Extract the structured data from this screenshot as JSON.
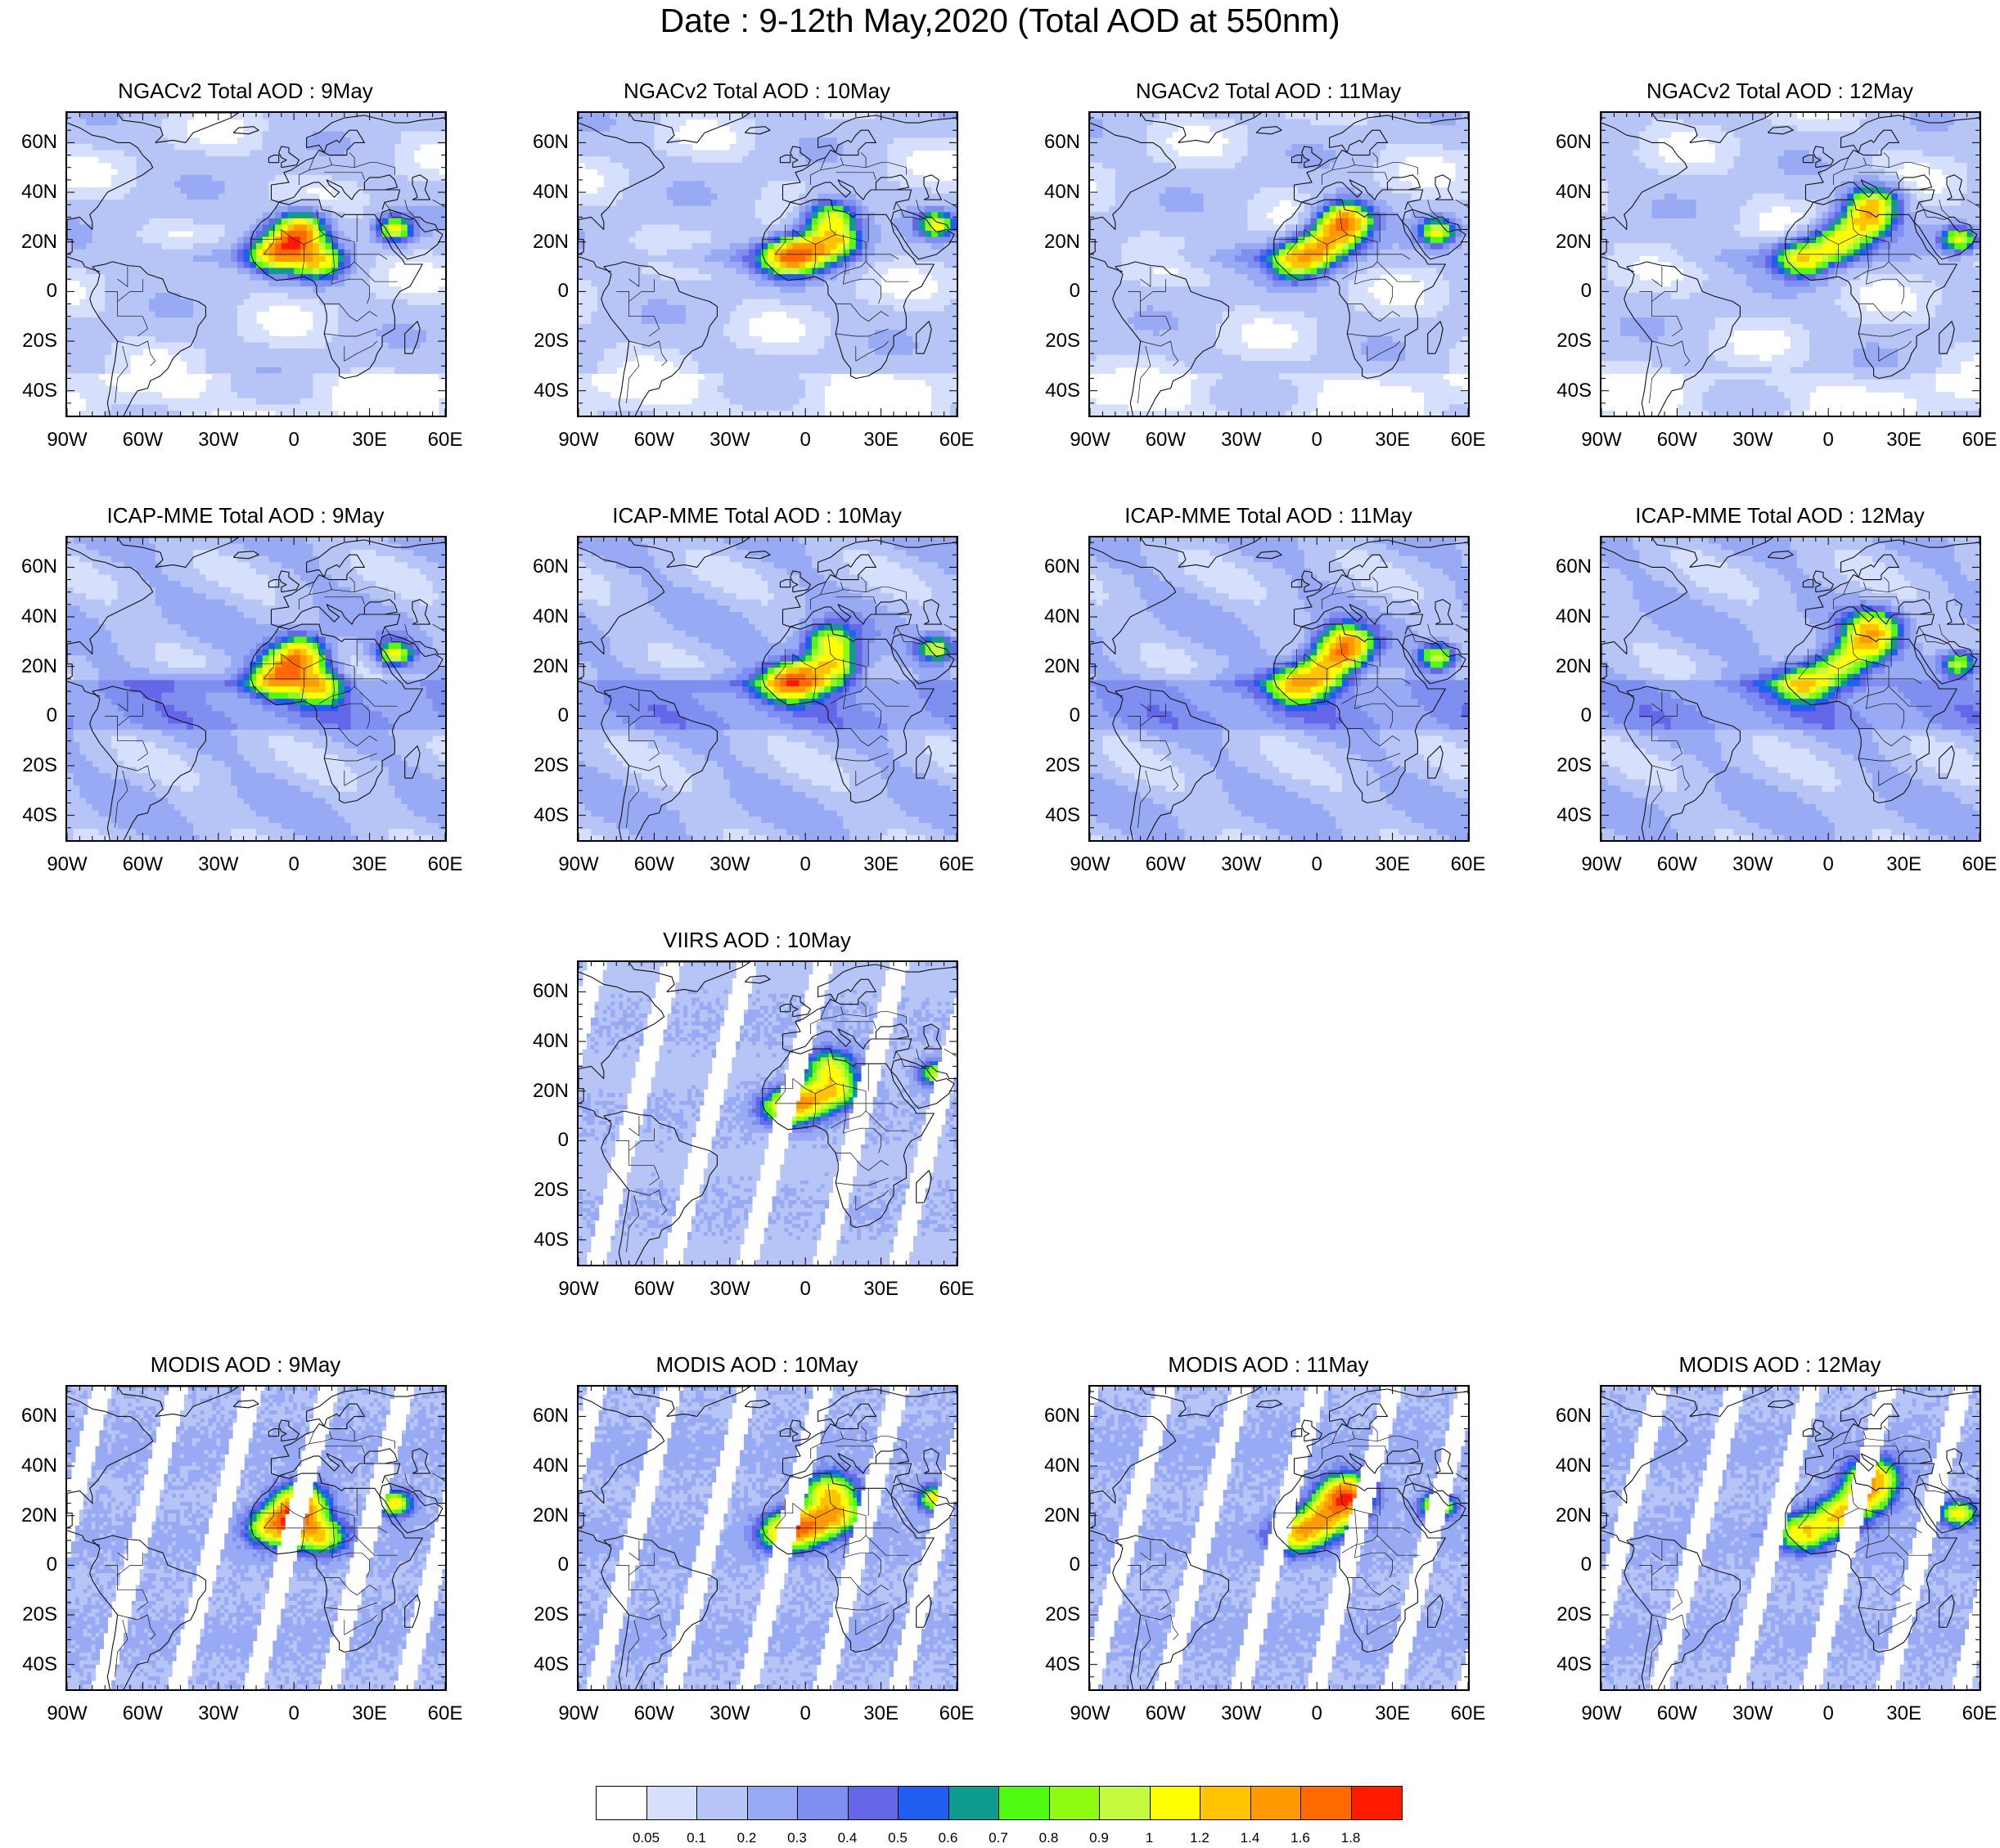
{
  "title": "Date : 9-12th May,2020 (Total AOD at 550nm)",
  "panels": [
    {
      "title": "NGACv2 Total AOD : 9May",
      "model": "ngac",
      "plume": 0
    },
    {
      "title": "NGACv2 Total AOD : 10May",
      "model": "ngac",
      "plume": 1
    },
    {
      "title": "NGACv2 Total AOD : 11May",
      "model": "ngac",
      "plume": 2
    },
    {
      "title": "NGACv2 Total AOD : 12May",
      "model": "ngac",
      "plume": 3
    },
    {
      "title": "ICAP-MME Total AOD : 9May",
      "model": "icap",
      "plume": 0
    },
    {
      "title": "ICAP-MME Total AOD : 10May",
      "model": "icap",
      "plume": 1
    },
    {
      "title": "ICAP-MME Total AOD : 11May",
      "model": "icap",
      "plume": 2
    },
    {
      "title": "ICAP-MME Total AOD : 12May",
      "model": "icap",
      "plume": 3
    },
    {
      "title": "VIIRS AOD : 10May",
      "model": "viirs",
      "plume": 1
    },
    {
      "title": "MODIS AOD : 9May",
      "model": "modis",
      "plume": 0
    },
    {
      "title": "MODIS AOD : 10May",
      "model": "modis",
      "plume": 1
    },
    {
      "title": "MODIS AOD : 11May",
      "model": "modis",
      "plume": 2
    },
    {
      "title": "MODIS AOD : 12May",
      "model": "modis",
      "plume": 3
    }
  ],
  "axes": {
    "lon_labels": [
      "90W",
      "60W",
      "30W",
      "0",
      "30E",
      "60E"
    ],
    "lat_labels": [
      "60N",
      "40N",
      "20N",
      "0",
      "20S",
      "40S"
    ]
  },
  "colorbar": {
    "colors": [
      "#ffffff",
      "#d6dffb",
      "#b6c4f6",
      "#97aaf3",
      "#7e8ff0",
      "#6467e8",
      "#1f5ef0",
      "#109b91",
      "#4ffb11",
      "#8efb10",
      "#c4fb3f",
      "#fffe00",
      "#ffc300",
      "#ff9a00",
      "#ff6a00",
      "#ff1a00"
    ],
    "labels": [
      "0.05",
      "0.1",
      "0.2",
      "0.3",
      "0.4",
      "0.5",
      "0.6",
      "0.7",
      "0.8",
      "0.9",
      "1",
      "1.2",
      "1.4",
      "1.6",
      "1.8"
    ]
  }
}
